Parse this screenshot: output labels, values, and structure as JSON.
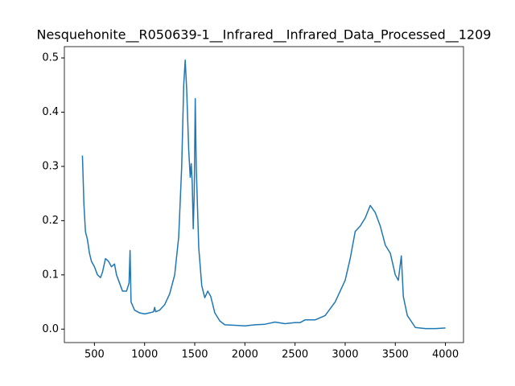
{
  "chart_data": {
    "type": "line",
    "title": "Nesquehonite__R050639-1__Infrared__Infrared_Data_Processed__1209",
    "x": [
      380,
      385,
      395,
      410,
      430,
      450,
      470,
      500,
      530,
      560,
      580,
      610,
      640,
      670,
      700,
      720,
      750,
      780,
      820,
      845,
      855,
      865,
      900,
      950,
      1000,
      1050,
      1090,
      1100,
      1110,
      1150,
      1200,
      1250,
      1300,
      1340,
      1370,
      1390,
      1405,
      1420,
      1440,
      1455,
      1465,
      1475,
      1485,
      1495,
      1505,
      1515,
      1540,
      1570,
      1600,
      1630,
      1660,
      1700,
      1750,
      1800,
      1900,
      2000,
      2100,
      2200,
      2300,
      2400,
      2500,
      2550,
      2600,
      2700,
      2800,
      2900,
      3000,
      3050,
      3100,
      3150,
      3200,
      3250,
      3300,
      3350,
      3400,
      3450,
      3500,
      3530,
      3560,
      3580,
      3620,
      3700,
      3800,
      3900,
      4000
    ],
    "series": [
      {
        "color": "#1f77b4",
        "values": [
          0.32,
          0.29,
          0.23,
          0.18,
          0.165,
          0.14,
          0.125,
          0.115,
          0.1,
          0.095,
          0.105,
          0.13,
          0.125,
          0.115,
          0.12,
          0.1,
          0.085,
          0.07,
          0.07,
          0.085,
          0.145,
          0.05,
          0.035,
          0.03,
          0.028,
          0.03,
          0.032,
          0.04,
          0.032,
          0.035,
          0.045,
          0.065,
          0.1,
          0.17,
          0.3,
          0.45,
          0.496,
          0.44,
          0.33,
          0.28,
          0.305,
          0.27,
          0.185,
          0.25,
          0.425,
          0.3,
          0.15,
          0.08,
          0.058,
          0.07,
          0.06,
          0.03,
          0.015,
          0.008,
          0.007,
          0.006,
          0.008,
          0.009,
          0.013,
          0.01,
          0.012,
          0.012,
          0.017,
          0.017,
          0.025,
          0.05,
          0.09,
          0.13,
          0.18,
          0.19,
          0.205,
          0.228,
          0.215,
          0.19,
          0.155,
          0.14,
          0.1,
          0.09,
          0.135,
          0.06,
          0.025,
          0.003,
          0.001,
          0.001,
          0.002
        ]
      }
    ],
    "xlim": [
      200,
      4180
    ],
    "ylim": [
      -0.0248,
      0.5208
    ],
    "xticks": [
      500,
      1000,
      1500,
      2000,
      2500,
      3000,
      3500,
      4000
    ],
    "yticks": [
      {
        "value": 0,
        "label": "0.0"
      },
      0.1,
      0.2,
      0.3,
      0.4,
      0.5
    ]
  }
}
